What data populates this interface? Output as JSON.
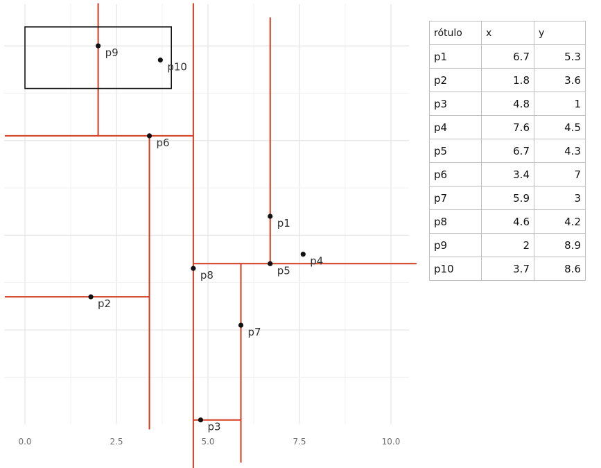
{
  "chart_data": {
    "type": "scatter",
    "x_ticks": [
      "0.0",
      "2.5",
      "5.0",
      "7.5",
      "10.0"
    ],
    "x_tick_values": [
      0,
      2.5,
      5,
      7.5,
      10
    ],
    "xlim": [
      -0.3,
      10.6
    ],
    "grid": true,
    "points": [
      {
        "label": "p1",
        "x": 6.7,
        "y": 5.3
      },
      {
        "label": "p2",
        "x": 1.8,
        "y": 3.6
      },
      {
        "label": "p3",
        "x": 4.8,
        "y": 1
      },
      {
        "label": "p4",
        "x": 7.6,
        "y": 4.5
      },
      {
        "label": "p5",
        "x": 6.7,
        "y": 4.3
      },
      {
        "label": "p6",
        "x": 3.4,
        "y": 7
      },
      {
        "label": "p7",
        "x": 5.9,
        "y": 3
      },
      {
        "label": "p8",
        "x": 4.6,
        "y": 4.2
      },
      {
        "label": "p9",
        "x": 2,
        "y": 8.9
      },
      {
        "label": "p10",
        "x": 3.7,
        "y": 8.6
      }
    ],
    "split_color": "#d13b1f",
    "query_rect": {
      "x1": 0,
      "x2": 4,
      "y1": 8,
      "y2": 9.3
    }
  },
  "table": {
    "headers": [
      "rótulo",
      "x",
      "y"
    ],
    "rows": [
      [
        "p1",
        "6.7",
        "5.3"
      ],
      [
        "p2",
        "1.8",
        "3.6"
      ],
      [
        "p3",
        "4.8",
        "1"
      ],
      [
        "p4",
        "7.6",
        "4.5"
      ],
      [
        "p5",
        "6.7",
        "4.3"
      ],
      [
        "p6",
        "3.4",
        "7"
      ],
      [
        "p7",
        "5.9",
        "3"
      ],
      [
        "p8",
        "4.6",
        "4.2"
      ],
      [
        "p9",
        "2",
        "8.9"
      ],
      [
        "p10",
        "3.7",
        "8.6"
      ]
    ]
  }
}
